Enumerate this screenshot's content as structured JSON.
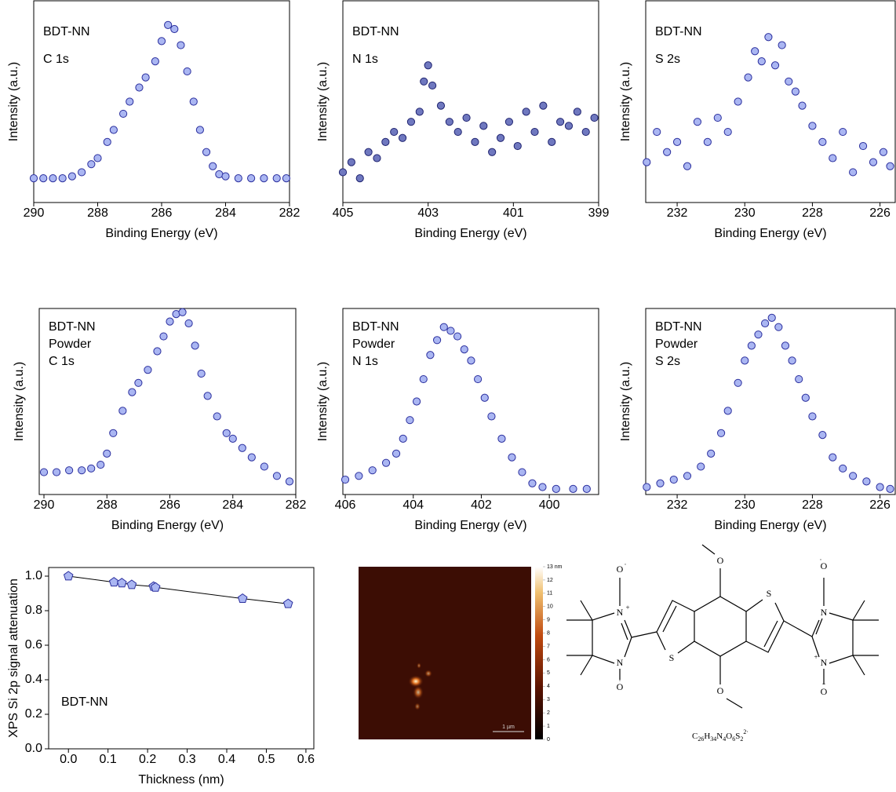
{
  "chart_data": [
    {
      "type": "scatter",
      "annotations": [
        "BDT-NN",
        "C 1s"
      ],
      "xlabel": "Binding Energy (eV)",
      "ylabel": "Intensity (a.u.)",
      "x": [
        290,
        289.7,
        289.4,
        289.1,
        288.8,
        288.5,
        288.2,
        288,
        287.7,
        287.5,
        287.2,
        287,
        286.7,
        286.5,
        286.2,
        286,
        285.8,
        285.6,
        285.4,
        285.2,
        285,
        284.8,
        284.6,
        284.4,
        284.2,
        284,
        283.6,
        283.2,
        282.8,
        282.4,
        282.1
      ],
      "values": [
        0.12,
        0.12,
        0.12,
        0.12,
        0.13,
        0.15,
        0.19,
        0.22,
        0.3,
        0.36,
        0.44,
        0.5,
        0.57,
        0.62,
        0.7,
        0.8,
        0.88,
        0.86,
        0.78,
        0.65,
        0.5,
        0.36,
        0.25,
        0.18,
        0.14,
        0.13,
        0.12,
        0.12,
        0.12,
        0.12,
        0.12
      ],
      "xlim": [
        290,
        282
      ],
      "ylim": [
        0,
        1
      ],
      "xticks": [
        290,
        288,
        286,
        284,
        282
      ],
      "color": "#aab6f2",
      "edge": "#2b2f9e"
    },
    {
      "type": "scatter",
      "annotations": [
        "BDT-NN",
        "N 1s"
      ],
      "xlabel": "Binding Energy (eV)",
      "ylabel": "Intensity (a.u.)",
      "x": [
        405,
        404.8,
        404.6,
        404.4,
        404.2,
        404,
        403.8,
        403.6,
        403.4,
        403.2,
        403.1,
        403,
        402.9,
        402.7,
        402.5,
        402.3,
        402.1,
        401.9,
        401.7,
        401.5,
        401.3,
        401.1,
        400.9,
        400.7,
        400.5,
        400.3,
        400.1,
        399.9,
        399.7,
        399.5,
        399.3,
        399.1
      ],
      "values": [
        0.15,
        0.2,
        0.12,
        0.25,
        0.22,
        0.3,
        0.35,
        0.32,
        0.4,
        0.45,
        0.6,
        0.68,
        0.58,
        0.48,
        0.4,
        0.35,
        0.42,
        0.3,
        0.38,
        0.25,
        0.32,
        0.4,
        0.28,
        0.45,
        0.35,
        0.48,
        0.3,
        0.4,
        0.38,
        0.45,
        0.35,
        0.42
      ],
      "xlim": [
        405,
        399
      ],
      "ylim": [
        0,
        1
      ],
      "xticks": [
        405,
        403,
        401,
        399
      ],
      "color": "#6f78bf",
      "edge": "#1f2370"
    },
    {
      "type": "scatter",
      "annotations": [
        "BDT-NN",
        "S 2s"
      ],
      "xlabel": "Binding Energy (eV)",
      "ylabel": "Intensity (a.u.)",
      "x": [
        232.9,
        232.6,
        232.3,
        232,
        231.7,
        231.4,
        231.1,
        230.8,
        230.5,
        230.2,
        229.9,
        229.7,
        229.5,
        229.3,
        229.1,
        228.9,
        228.7,
        228.5,
        228.3,
        228,
        227.7,
        227.4,
        227.1,
        226.8,
        226.5,
        226.2,
        225.9,
        225.7
      ],
      "values": [
        0.2,
        0.35,
        0.25,
        0.3,
        0.18,
        0.4,
        0.3,
        0.42,
        0.35,
        0.5,
        0.62,
        0.75,
        0.7,
        0.82,
        0.68,
        0.78,
        0.6,
        0.55,
        0.48,
        0.38,
        0.3,
        0.22,
        0.35,
        0.15,
        0.28,
        0.2,
        0.25,
        0.18
      ],
      "xlim": [
        232.93,
        225.55
      ],
      "ylim": [
        0,
        1
      ],
      "xticks": [
        232,
        230,
        228,
        226
      ],
      "color": "#aab6f2",
      "edge": "#2b2f9e"
    },
    {
      "type": "scatter",
      "annotations": [
        "BDT-NN",
        "Powder",
        "C 1s"
      ],
      "xlabel": "Binding Energy (eV)",
      "ylabel": "Intensity (a.u.)",
      "x": [
        290,
        289.6,
        289.2,
        288.8,
        288.5,
        288.2,
        288,
        287.8,
        287.5,
        287.2,
        287,
        286.7,
        286.4,
        286.2,
        286,
        285.8,
        285.6,
        285.4,
        285.2,
        285,
        284.8,
        284.5,
        284.2,
        284,
        283.7,
        283.4,
        283,
        282.6,
        282.2
      ],
      "values": [
        0.12,
        0.12,
        0.13,
        0.13,
        0.14,
        0.16,
        0.22,
        0.33,
        0.45,
        0.55,
        0.6,
        0.67,
        0.77,
        0.85,
        0.93,
        0.97,
        0.98,
        0.92,
        0.8,
        0.65,
        0.53,
        0.42,
        0.33,
        0.3,
        0.25,
        0.2,
        0.15,
        0.1,
        0.07
      ],
      "xlim": [
        290.15,
        282
      ],
      "ylim": [
        0,
        1
      ],
      "xticks": [
        290,
        288,
        286,
        284,
        282
      ],
      "color": "#aab6f2",
      "edge": "#2b2f9e"
    },
    {
      "type": "scatter",
      "annotations": [
        "BDT-NN",
        "Powder",
        "N 1s"
      ],
      "xlabel": "Binding Energy (eV)",
      "ylabel": "Intensity (a.u.)",
      "x": [
        406,
        405.6,
        405.2,
        404.8,
        404.5,
        404.3,
        404.1,
        403.9,
        403.7,
        403.5,
        403.3,
        403.1,
        402.9,
        402.7,
        402.5,
        402.3,
        402.1,
        401.9,
        401.7,
        401.4,
        401.1,
        400.8,
        400.5,
        400.2,
        399.8,
        399.3,
        398.9
      ],
      "values": [
        0.08,
        0.1,
        0.13,
        0.17,
        0.22,
        0.3,
        0.4,
        0.5,
        0.62,
        0.75,
        0.83,
        0.9,
        0.88,
        0.85,
        0.78,
        0.72,
        0.62,
        0.52,
        0.42,
        0.3,
        0.2,
        0.12,
        0.06,
        0.04,
        0.03,
        0.03,
        0.03
      ],
      "xlim": [
        406.07,
        398.55
      ],
      "ylim": [
        0,
        1
      ],
      "xticks": [
        406,
        404,
        402,
        400
      ],
      "color": "#aab6f2",
      "edge": "#2b2f9e"
    },
    {
      "type": "scatter",
      "annotations": [
        "BDT-NN",
        "Powder",
        "S 2s"
      ],
      "xlabel": "Binding Energy (eV)",
      "ylabel": "Intensity (a.u.)",
      "x": [
        232.9,
        232.5,
        232.1,
        231.7,
        231.3,
        231,
        230.7,
        230.5,
        230.2,
        230,
        229.8,
        229.6,
        229.4,
        229.2,
        229,
        228.8,
        228.6,
        228.4,
        228.2,
        228,
        227.7,
        227.4,
        227.1,
        226.8,
        226.4,
        226,
        225.7
      ],
      "values": [
        0.04,
        0.06,
        0.08,
        0.1,
        0.15,
        0.22,
        0.33,
        0.45,
        0.6,
        0.72,
        0.8,
        0.86,
        0.92,
        0.95,
        0.9,
        0.8,
        0.72,
        0.62,
        0.52,
        0.42,
        0.32,
        0.2,
        0.14,
        0.1,
        0.07,
        0.04,
        0.03
      ],
      "xlim": [
        232.93,
        225.55
      ],
      "ylim": [
        0,
        1
      ],
      "xticks": [
        232,
        230,
        228,
        226
      ],
      "color": "#aab6f2",
      "edge": "#2b2f9e"
    },
    {
      "type": "line",
      "annotations": [
        "BDT-NN"
      ],
      "xlabel": "Thickness (nm)",
      "ylabel": "XPS Si 2p signal attenuation",
      "x": [
        0,
        0.115,
        0.135,
        0.16,
        0.215,
        0.22,
        0.44,
        0.555
      ],
      "values": [
        1.0,
        0.965,
        0.96,
        0.95,
        0.94,
        0.935,
        0.87,
        0.84
      ],
      "xlim": [
        -0.05,
        0.62
      ],
      "ylim": [
        0,
        1.05
      ],
      "xticks": [
        {
          "value": 0,
          "label": "0.0"
        },
        0.1,
        0.2,
        0.3,
        0.4,
        0.5,
        0.6
      ],
      "yticks": [
        {
          "value": 0,
          "label": "0.0"
        },
        0.2,
        0.4,
        0.6,
        0.8,
        {
          "value": 1,
          "label": "1.0"
        }
      ],
      "color": "#aab6f2",
      "edge": "#2b2f9e"
    }
  ],
  "afm": {
    "colorbar": {
      "ylim": [
        0,
        13
      ],
      "yticks": [
        {
          "value": 13,
          "label": "13 nm"
        },
        12,
        11,
        10,
        9,
        8,
        7,
        6,
        5,
        4,
        3,
        2,
        1,
        0
      ]
    },
    "scale_bar": "1 µm"
  },
  "structure": {
    "atoms": [
      "O",
      "O",
      "S",
      "S",
      "N",
      "+",
      "O",
      "·",
      "N",
      "O",
      "·",
      "N",
      "O",
      "·",
      "+",
      "N",
      "O",
      "−"
    ],
    "formula": [
      "C",
      "26",
      "H",
      "34",
      "N",
      "4",
      "O",
      "6",
      "S",
      "2",
      "2·"
    ]
  }
}
